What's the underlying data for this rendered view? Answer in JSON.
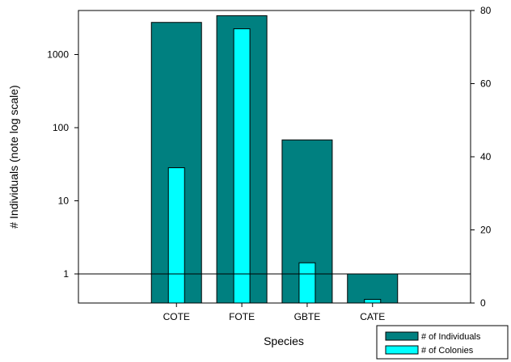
{
  "chart_data": {
    "type": "bar",
    "xlabel": "Species",
    "ylabel": "# Individuals (note log scale)",
    "categories": [
      "COTE",
      "FOTE",
      "GBTE",
      "CATE"
    ],
    "series": [
      {
        "name": "# of Individuals",
        "axis": "left",
        "scale": "log",
        "color": "#008080",
        "values": [
          2750,
          3400,
          68,
          1
        ]
      },
      {
        "name": "# of Colonies",
        "axis": "right",
        "scale": "linear",
        "color": "#00FFFF",
        "values": [
          37,
          75,
          11,
          1
        ]
      }
    ],
    "left_axis": {
      "scale": "log",
      "ylim": [
        0.4,
        4000
      ],
      "ticks": [
        1,
        10,
        100,
        1000
      ],
      "tick_labels": [
        "1",
        "10",
        "100",
        "1000"
      ],
      "reference_line": 1
    },
    "right_axis": {
      "scale": "linear",
      "ylim": [
        0,
        80
      ],
      "ticks": [
        0,
        20,
        40,
        60,
        80
      ],
      "tick_labels": [
        "0",
        "20",
        "40",
        "60",
        "80"
      ]
    },
    "legend": {
      "position": "bottom-right",
      "entries": [
        "# of Individuals",
        "# of Colonies"
      ]
    },
    "grid": false
  }
}
